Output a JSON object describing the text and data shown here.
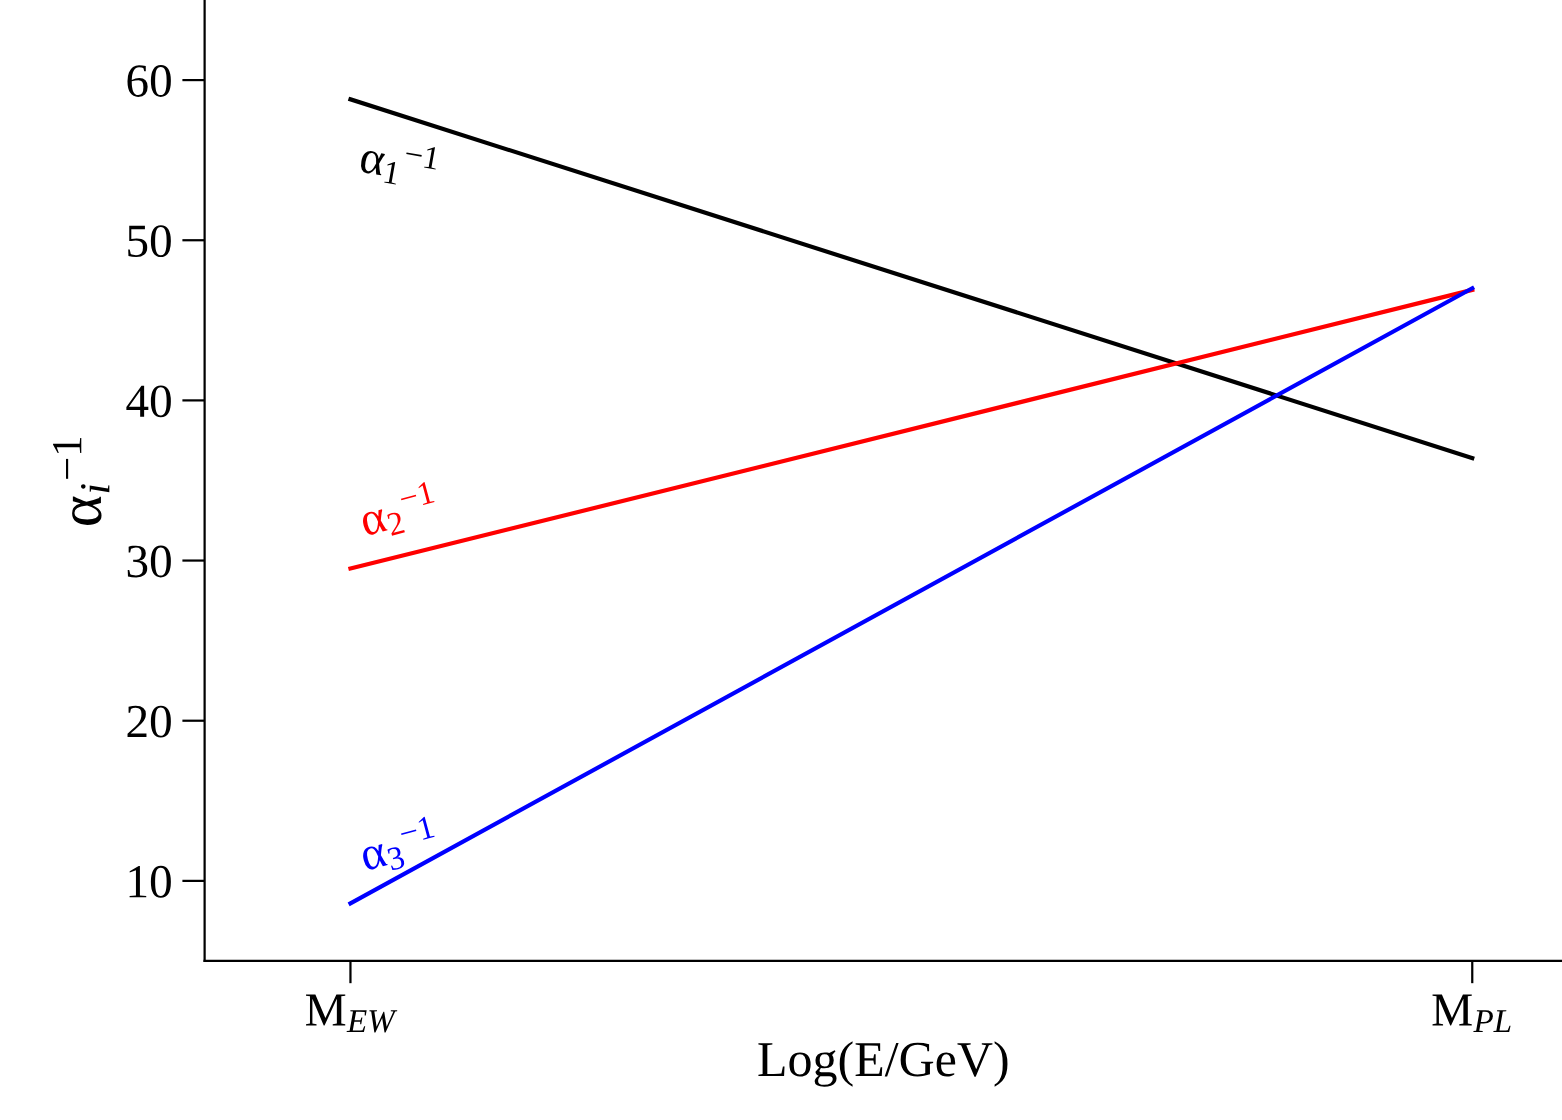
{
  "chart_data": {
    "type": "line",
    "xlabel": "Log(E/GeV)",
    "ylabel": "α$_{i}$$^{−1}$",
    "categories": [
      "M$_{EW}$",
      "M$_{PL}$"
    ],
    "ylim": [
      5,
      65
    ],
    "yticks": [
      10,
      20,
      30,
      40,
      50,
      60
    ],
    "grid": false,
    "legend": false,
    "marker": "none",
    "line_style": "solid",
    "series": [
      {
        "name": "α$_{1}$$^{−1}$",
        "color": "#000000",
        "values": [
          58.8,
          36.4
        ]
      },
      {
        "name": "α$_{2}$$^{−1}$",
        "color": "#ff0000",
        "values": [
          29.5,
          46.9
        ]
      },
      {
        "name": "α$_{3}$$^{−1}$",
        "color": "#0000ff",
        "values": [
          8.6,
          47.0
        ]
      }
    ]
  }
}
